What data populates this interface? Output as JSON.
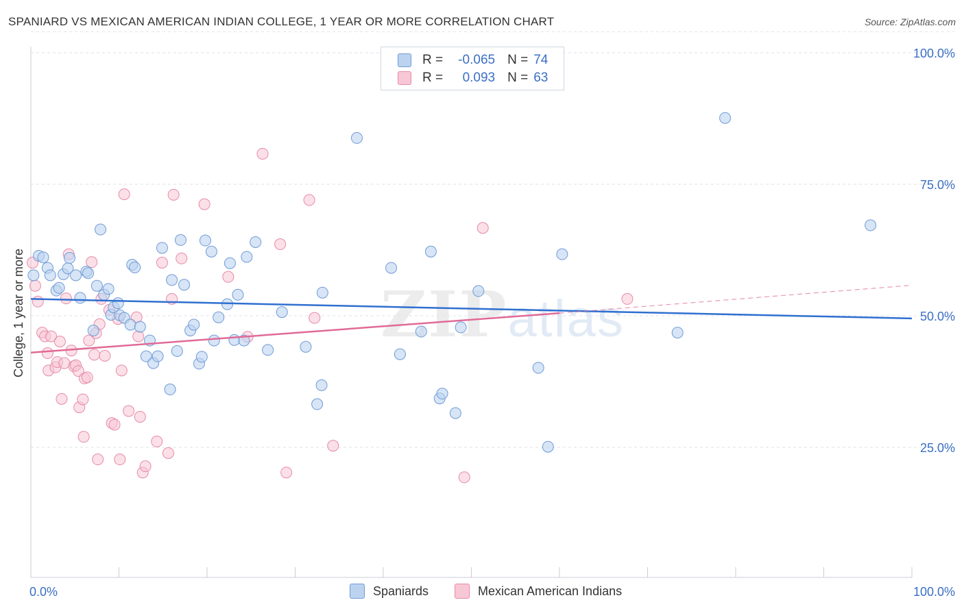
{
  "title": "SPANIARD VS MEXICAN AMERICAN INDIAN COLLEGE, 1 YEAR OR MORE CORRELATION CHART",
  "source": "Source: ZipAtlas.com",
  "watermark": {
    "zip": "ZIP",
    "atlas": "atlas"
  },
  "legend": {
    "rows": [
      {
        "r_label": "R =",
        "r_value": "-0.065",
        "n_label": "N =",
        "n_value": "74"
      },
      {
        "r_label": "R =",
        "r_value": "0.093",
        "n_label": "N =",
        "n_value": "63"
      }
    ]
  },
  "bottom_legend": [
    "Spaniards",
    "Mexican American Indians"
  ],
  "colors": {
    "blue_fill": "#bcd3f0",
    "blue_stroke": "#6f9ad6",
    "blue_line": "#2f6fd0",
    "pink_fill": "#f8c7d6",
    "pink_stroke": "#e68aa8",
    "pink_line": "#e06a96",
    "tick_label": "#3a6fc4"
  },
  "chart_data": {
    "type": "scatter",
    "title": "SPANIARD VS MEXICAN AMERICAN INDIAN COLLEGE, 1 YEAR OR MORE CORRELATION CHART",
    "xlabel": "",
    "ylabel": "College, 1 year or more",
    "xlim": [
      0,
      100
    ],
    "ylim": [
      0,
      105
    ],
    "x_tick_labels": [
      "0.0%",
      "100.0%"
    ],
    "y_ticks": [
      25,
      50,
      75,
      100
    ],
    "y_tick_labels": [
      "25.0%",
      "50.0%",
      "75.0%",
      "100.0%"
    ],
    "grid": "horizontal dashed",
    "legend_position": "top-center",
    "series": [
      {
        "name": "Spaniards",
        "trend": [
          [
            0,
            53.2
          ],
          [
            100,
            49.5
          ]
        ],
        "points": [
          [
            0.3,
            57.7
          ],
          [
            0.9,
            61.4
          ],
          [
            1.4,
            61.1
          ],
          [
            1.9,
            59.1
          ],
          [
            2.2,
            57.7
          ],
          [
            2.9,
            54.8
          ],
          [
            3.2,
            55.3
          ],
          [
            3.7,
            57.9
          ],
          [
            4.2,
            59.0
          ],
          [
            4.4,
            61.0
          ],
          [
            5.1,
            57.7
          ],
          [
            5.6,
            53.4
          ],
          [
            6.3,
            58.4
          ],
          [
            6.5,
            58.1
          ],
          [
            7.1,
            47.2
          ],
          [
            7.5,
            55.7
          ],
          [
            7.9,
            66.4
          ],
          [
            8.3,
            54.0
          ],
          [
            8.8,
            55.1
          ],
          [
            9.1,
            50.2
          ],
          [
            9.4,
            51.6
          ],
          [
            9.9,
            52.4
          ],
          [
            10.1,
            50.1
          ],
          [
            10.6,
            49.6
          ],
          [
            11.3,
            48.3
          ],
          [
            11.5,
            59.7
          ],
          [
            11.8,
            59.2
          ],
          [
            12.4,
            47.9
          ],
          [
            13.1,
            42.3
          ],
          [
            13.5,
            45.3
          ],
          [
            13.9,
            41.0
          ],
          [
            14.4,
            42.3
          ],
          [
            14.9,
            62.9
          ],
          [
            15.8,
            36.0
          ],
          [
            16.0,
            56.8
          ],
          [
            16.6,
            43.3
          ],
          [
            17.0,
            64.4
          ],
          [
            17.4,
            55.9
          ],
          [
            18.1,
            47.2
          ],
          [
            18.5,
            48.3
          ],
          [
            19.1,
            40.9
          ],
          [
            19.4,
            42.2
          ],
          [
            19.8,
            64.3
          ],
          [
            20.5,
            62.2
          ],
          [
            20.8,
            45.3
          ],
          [
            21.3,
            49.7
          ],
          [
            22.3,
            52.2
          ],
          [
            22.6,
            60.0
          ],
          [
            23.1,
            45.4
          ],
          [
            23.5,
            54.0
          ],
          [
            24.2,
            45.3
          ],
          [
            24.5,
            61.2
          ],
          [
            25.5,
            64.0
          ],
          [
            26.9,
            43.5
          ],
          [
            28.5,
            50.7
          ],
          [
            31.2,
            44.1
          ],
          [
            32.5,
            33.2
          ],
          [
            33.0,
            36.8
          ],
          [
            33.1,
            54.4
          ],
          [
            37.0,
            83.8
          ],
          [
            40.9,
            59.1
          ],
          [
            41.9,
            42.7
          ],
          [
            44.3,
            47.0
          ],
          [
            45.4,
            62.2
          ],
          [
            46.4,
            34.3
          ],
          [
            46.7,
            35.2
          ],
          [
            48.2,
            31.5
          ],
          [
            48.8,
            47.8
          ],
          [
            50.8,
            54.7
          ],
          [
            57.6,
            40.1
          ],
          [
            58.7,
            25.1
          ],
          [
            60.3,
            61.7
          ],
          [
            73.4,
            46.8
          ],
          [
            78.8,
            87.6
          ],
          [
            95.3,
            67.2
          ]
        ]
      },
      {
        "name": "Mexican American Indians",
        "trend": [
          [
            0,
            43.0
          ],
          [
            60,
            50.5
          ]
        ],
        "trend_dashed": [
          [
            60,
            50.5
          ],
          [
            100,
            55.8
          ]
        ],
        "points": [
          [
            0.2,
            60.1
          ],
          [
            0.5,
            55.7
          ],
          [
            0.8,
            52.7
          ],
          [
            1.3,
            46.8
          ],
          [
            1.6,
            46.1
          ],
          [
            1.9,
            42.9
          ],
          [
            2.0,
            39.6
          ],
          [
            2.3,
            46.1
          ],
          [
            2.8,
            40.2
          ],
          [
            3.0,
            41.2
          ],
          [
            3.3,
            45.1
          ],
          [
            3.5,
            34.2
          ],
          [
            3.8,
            41.0
          ],
          [
            4.0,
            53.3
          ],
          [
            4.3,
            61.7
          ],
          [
            4.6,
            43.4
          ],
          [
            4.9,
            40.4
          ],
          [
            5.1,
            40.6
          ],
          [
            5.4,
            39.5
          ],
          [
            5.5,
            32.6
          ],
          [
            5.9,
            34.1
          ],
          [
            6.0,
            27.0
          ],
          [
            6.1,
            38.1
          ],
          [
            6.4,
            38.3
          ],
          [
            6.6,
            45.3
          ],
          [
            6.9,
            60.2
          ],
          [
            7.2,
            42.6
          ],
          [
            7.4,
            46.7
          ],
          [
            7.6,
            22.7
          ],
          [
            7.8,
            48.4
          ],
          [
            8.0,
            53.2
          ],
          [
            8.4,
            42.4
          ],
          [
            8.9,
            51.1
          ],
          [
            9.2,
            29.6
          ],
          [
            9.5,
            29.3
          ],
          [
            9.9,
            49.4
          ],
          [
            10.1,
            22.7
          ],
          [
            10.3,
            39.6
          ],
          [
            10.6,
            73.1
          ],
          [
            11.1,
            31.9
          ],
          [
            12.0,
            49.7
          ],
          [
            12.2,
            46.1
          ],
          [
            12.4,
            30.8
          ],
          [
            12.7,
            20.2
          ],
          [
            13.0,
            21.4
          ],
          [
            14.3,
            26.1
          ],
          [
            14.9,
            60.1
          ],
          [
            15.6,
            23.9
          ],
          [
            16.0,
            53.2
          ],
          [
            16.2,
            73.0
          ],
          [
            17.1,
            60.9
          ],
          [
            19.7,
            71.2
          ],
          [
            22.4,
            57.4
          ],
          [
            24.6,
            46.0
          ],
          [
            26.3,
            80.8
          ],
          [
            28.3,
            63.6
          ],
          [
            29.0,
            20.2
          ],
          [
            31.6,
            72.0
          ],
          [
            32.2,
            49.6
          ],
          [
            34.3,
            25.3
          ],
          [
            49.2,
            19.3
          ],
          [
            51.3,
            66.7
          ],
          [
            67.7,
            53.2
          ]
        ]
      }
    ]
  }
}
